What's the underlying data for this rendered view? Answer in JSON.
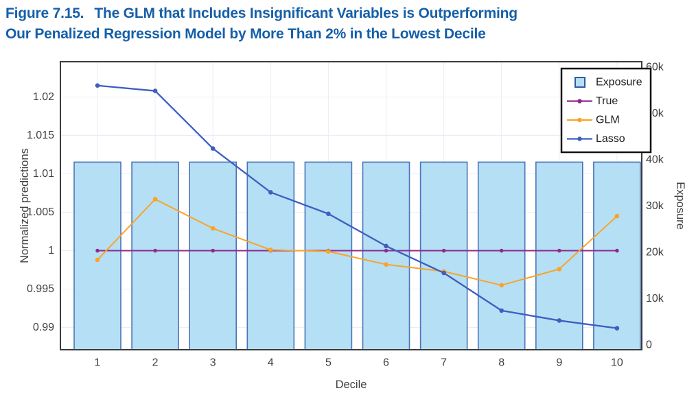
{
  "figure": {
    "label": "Figure 7.15.",
    "title_line1": "The GLM that Includes Insignificant Variables is Outperforming",
    "title_line2": "Our Penalized Regression Model by More Than 2% in the Lowest Decile",
    "title_color": "#155fa8"
  },
  "chart_data": {
    "type": "bar+line",
    "categories": [
      "1",
      "2",
      "3",
      "4",
      "5",
      "6",
      "7",
      "8",
      "9",
      "10"
    ],
    "xlabel": "Decile",
    "ylabel_left": "Normalized predictions",
    "ylabel_right": "Exposure",
    "ylim_left": [
      0.9871,
      1.0246
    ],
    "ylim_right": [
      -1040,
      61190
    ],
    "yticks_left": [
      0.99,
      0.995,
      1,
      1.005,
      1.01,
      1.015,
      1.02
    ],
    "ytick_labels_left": [
      "0.99",
      "0.995",
      "1",
      "1.005",
      "1.01",
      "1.015",
      "1.02"
    ],
    "yticks_right": [
      0,
      10000,
      20000,
      30000,
      40000,
      50000,
      60000
    ],
    "ytick_labels_right": [
      "0",
      "10k",
      "20k",
      "30k",
      "40k",
      "50k",
      "60k"
    ],
    "grid": true,
    "legend_position": "top-right",
    "bars": {
      "name": "Exposure",
      "axis": "right",
      "values": [
        39500,
        39500,
        39500,
        39500,
        39500,
        39500,
        39500,
        39500,
        39500,
        39500
      ],
      "fill": "#b5dff4",
      "stroke": "#4a74b8"
    },
    "series": [
      {
        "name": "True",
        "axis": "left",
        "color": "#8e2a8e",
        "values": [
          1.0,
          1.0,
          1.0,
          1.0,
          1.0,
          1.0,
          1.0,
          1.0,
          1.0,
          1.0
        ]
      },
      {
        "name": "GLM",
        "axis": "left",
        "color": "#fba328",
        "values": [
          0.9988,
          1.0067,
          1.0029,
          1.0001,
          0.9999,
          0.9982,
          0.9973,
          0.9955,
          0.9976,
          1.0045
        ]
      },
      {
        "name": "Lasso",
        "axis": "left",
        "color": "#3e5ec0",
        "values": [
          1.0215,
          1.0208,
          1.0133,
          1.0076,
          1.0048,
          1.0006,
          0.9971,
          0.9922,
          0.9909,
          0.9899
        ]
      }
    ],
    "colors": {
      "grid": "#e9eef6",
      "plot_border": "#3b3b3b",
      "tick_text": "#3f3f3f",
      "legend_border": "#111111",
      "legend_text": "#1c1c1c"
    }
  }
}
